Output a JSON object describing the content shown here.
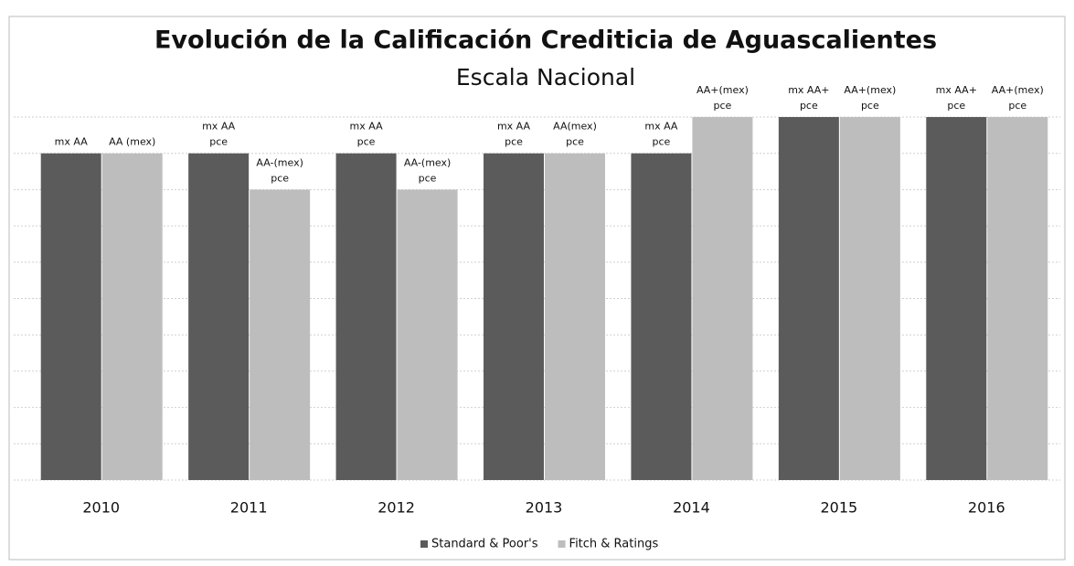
{
  "chart_data": {
    "type": "bar",
    "title": "Evolución de la Calificación Crediticia de Aguascalientes",
    "subtitle": "Escala Nacional",
    "categories": [
      "2010",
      "2011",
      "2012",
      "2013",
      "2014",
      "2015",
      "2016"
    ],
    "series": [
      {
        "name": "Standard & Poor's",
        "color": "#5b5b5b",
        "values": [
          9,
          9,
          9,
          9,
          9,
          10,
          10
        ],
        "value_labels": [
          [
            "mx AA"
          ],
          [
            "mx AA",
            "pce"
          ],
          [
            "mx AA",
            "pce"
          ],
          [
            "mx AA",
            "pce"
          ],
          [
            "mx AA",
            "pce"
          ],
          [
            "mx AA+",
            "pce"
          ],
          [
            "mx AA+",
            "pce"
          ]
        ]
      },
      {
        "name": "Fitch & Ratings",
        "color": "#bdbdbd",
        "values": [
          9,
          8,
          8,
          9,
          10,
          10,
          10
        ],
        "value_labels": [
          [
            "AA (mex)"
          ],
          [
            "AA-(mex)",
            "pce"
          ],
          [
            "AA-(mex)",
            "pce"
          ],
          [
            "AA(mex)",
            "pce"
          ],
          [
            "AA+(mex)",
            "pce"
          ],
          [
            "AA+(mex)",
            "pce"
          ],
          [
            "AA+(mex)",
            "pce"
          ]
        ]
      }
    ],
    "ylim": [
      0,
      10
    ],
    "yticks": [
      0,
      1,
      2,
      3,
      4,
      5,
      6,
      7,
      8,
      9,
      10
    ],
    "grid": true,
    "legend": "bottom"
  }
}
